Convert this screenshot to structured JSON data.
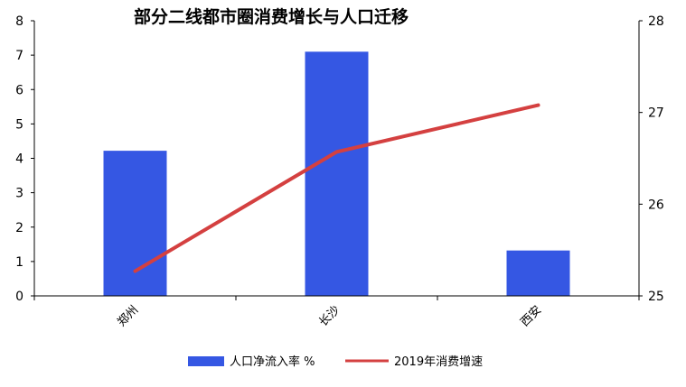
{
  "chart_data": {
    "type": "bar+line",
    "title": "部分二线都市圈消费增长与人口迁移",
    "categories": [
      "郑州",
      "长沙",
      "西安"
    ],
    "series": [
      {
        "name": "人口净流入率 %",
        "kind": "bar",
        "axis": "left",
        "values": [
          4.22,
          7.1,
          1.32
        ],
        "color": "#3557e3"
      },
      {
        "name": "2019年消费增速",
        "kind": "line",
        "axis": "right",
        "values": [
          25.27,
          26.57,
          27.08
        ],
        "color": "#d44040"
      }
    ],
    "y_left": {
      "min": 0,
      "max": 8,
      "ticks": [
        "0",
        "1",
        "2",
        "3",
        "4",
        "5",
        "6",
        "7",
        "8"
      ]
    },
    "y_right": {
      "min": 25,
      "max": 28,
      "ticks": [
        "25",
        "26",
        "27",
        "28"
      ]
    },
    "grid": false,
    "legend": "bottom-center"
  }
}
